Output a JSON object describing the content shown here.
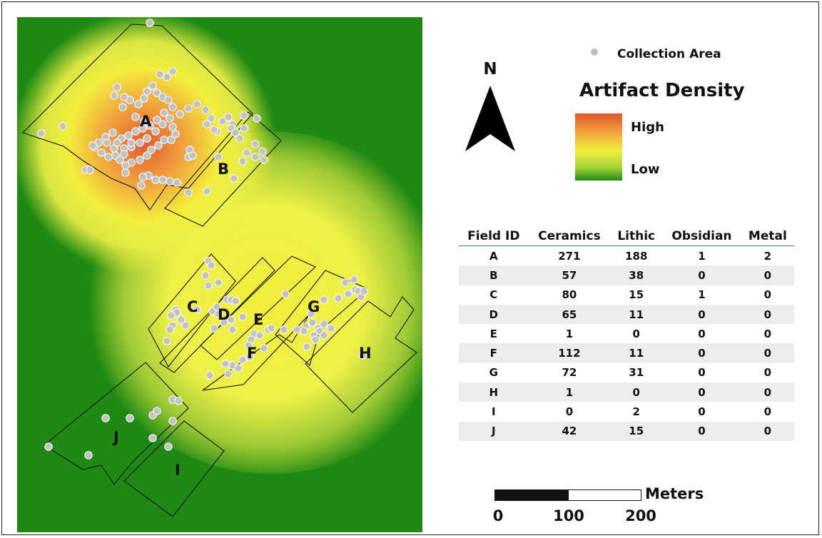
{
  "legend": {
    "collection_label": "Collection Area",
    "title": "Artifact Density",
    "high_label": "High",
    "low_label": "Low",
    "gradient_colors": [
      "#e0552e",
      "#f2ef3c",
      "#1e8a14"
    ]
  },
  "north_arrow": {
    "label": "N"
  },
  "scale": {
    "unit": "Meters",
    "ticks": [
      "0",
      "100",
      "200"
    ]
  },
  "fields": [
    "A",
    "B",
    "C",
    "D",
    "E",
    "F",
    "G",
    "H",
    "I",
    "J"
  ],
  "table": {
    "headers": [
      "Field ID",
      "Ceramics",
      "Lithic",
      "Obsidian",
      "Metal"
    ],
    "rows": [
      [
        "A",
        "271",
        "188",
        "1",
        "2"
      ],
      [
        "B",
        "57",
        "38",
        "0",
        "0"
      ],
      [
        "C",
        "80",
        "15",
        "1",
        "0"
      ],
      [
        "D",
        "65",
        "11",
        "0",
        "0"
      ],
      [
        "E",
        "1",
        "0",
        "0",
        "0"
      ],
      [
        "F",
        "112",
        "11",
        "0",
        "0"
      ],
      [
        "G",
        "72",
        "31",
        "0",
        "0"
      ],
      [
        "H",
        "1",
        "0",
        "0",
        "0"
      ],
      [
        "I",
        "0",
        "2",
        "0",
        "0"
      ],
      [
        "J",
        "42",
        "15",
        "0",
        "0"
      ]
    ]
  }
}
